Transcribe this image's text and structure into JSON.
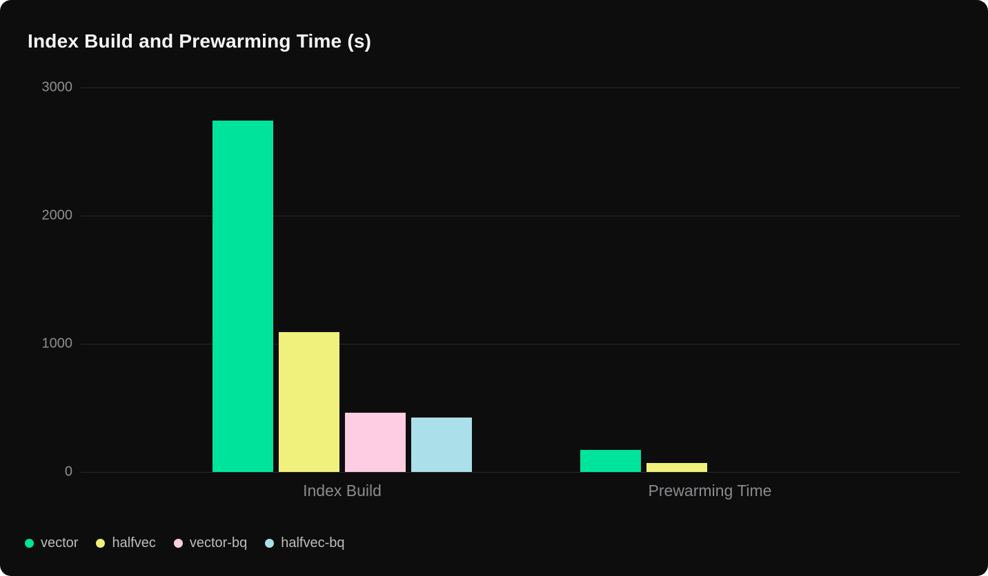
{
  "card": {
    "title": "Index Build and Prewarming Time (s)"
  },
  "chart_data": {
    "type": "bar",
    "title": "Index Build and Prewarming Time (s)",
    "categories": [
      "Index Build",
      "Prewarming Time"
    ],
    "series": [
      {
        "name": "vector",
        "color": "#00e39b",
        "values": [
          2740,
          170
        ]
      },
      {
        "name": "halfvec",
        "color": "#eff17c",
        "values": [
          1090,
          70
        ]
      },
      {
        "name": "vector-bq",
        "color": "#fecde4",
        "values": [
          460,
          0
        ]
      },
      {
        "name": "halfvec-bq",
        "color": "#abdfe9",
        "values": [
          425,
          0
        ]
      }
    ],
    "xlabel": "",
    "ylabel": "",
    "ylim": [
      0,
      3000
    ],
    "yticks": [
      3000,
      2000,
      1000,
      0
    ],
    "grid": true,
    "legend_position": "bottom-left",
    "legend": [
      "vector",
      "halfvec",
      "vector-bq",
      "halfvec-bq"
    ],
    "theme": {
      "background": "#0d0d0d",
      "gridline": "#2a2a2b",
      "tick_label": "#8f8f8f",
      "axis_label": "#8b8b90",
      "legend_text": "#bdbdbd",
      "title_text": "#f4f4f4"
    }
  }
}
